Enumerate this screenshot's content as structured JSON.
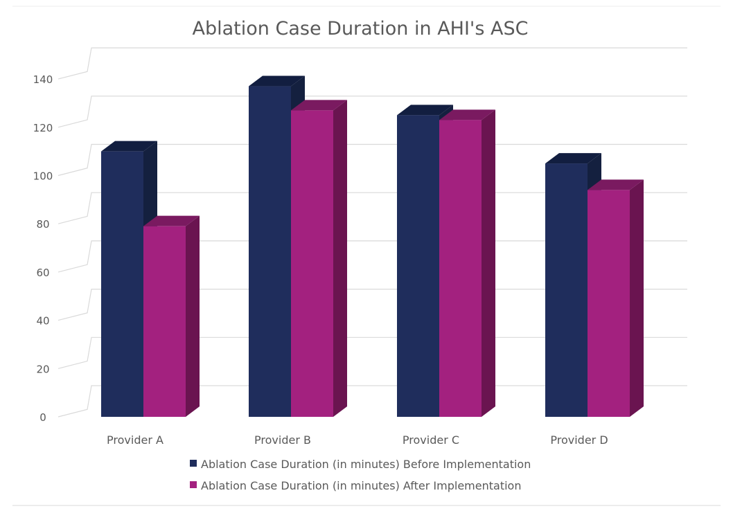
{
  "chart_data": {
    "type": "bar",
    "title": "Ablation Case Duration in AHI's ASC",
    "categories": [
      "Provider A",
      "Provider B",
      "Provider C",
      "Provider D"
    ],
    "series": [
      {
        "name": "Ablation Case Duration (in minutes) Before Implementation",
        "values": [
          110,
          137,
          125,
          105
        ],
        "color": "#1f2d5c",
        "side_color": "#14203f",
        "top_color": "#121e40"
      },
      {
        "name": "Ablation Case Duration (in minutes) After Implementation",
        "values": [
          79,
          127,
          123,
          94
        ],
        "color": "#a3217f",
        "side_color": "#6a1450",
        "top_color": "#7a1a60"
      }
    ],
    "yticks": [
      "0",
      "20",
      "40",
      "60",
      "80",
      "100",
      "120",
      "140"
    ],
    "ylim": [
      0,
      140
    ],
    "xlabel": "",
    "ylabel": "",
    "grid": true,
    "legend_position": "bottom"
  }
}
